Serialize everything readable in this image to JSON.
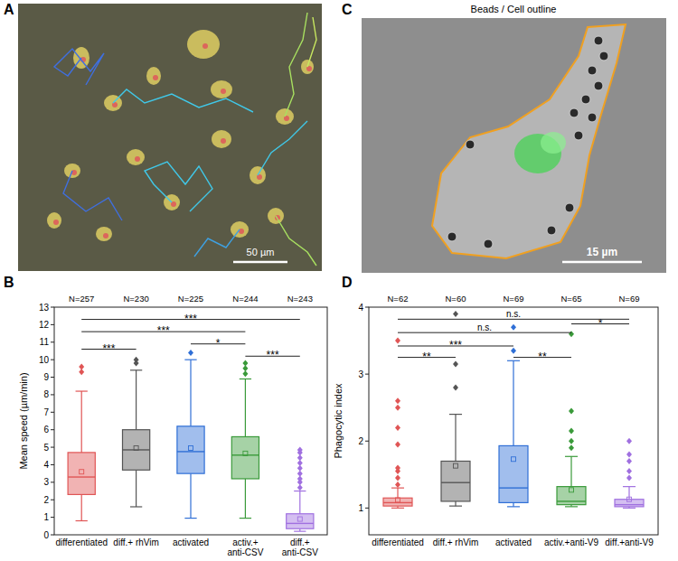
{
  "chart_data": [
    {
      "type": "box",
      "panel_label": "B",
      "y_label": "Mean speed (µm/min)",
      "categories": [
        "differentiated",
        "diff.+ rhVim",
        "activated",
        "activ.+ anti-CSV",
        "diff.+ anti-CSV"
      ],
      "colors": [
        "#e05555",
        "#555555",
        "#2f6fd6",
        "#3a9a3a",
        "#a070e0"
      ],
      "n_labels": [
        "N=257",
        "N=230",
        "N=225",
        "N=244",
        "N=243"
      ],
      "whisker_low": [
        0.8,
        1.6,
        0.95,
        0.95,
        0.2
      ],
      "q1": [
        2.3,
        3.7,
        3.5,
        3.2,
        0.35
      ],
      "median": [
        3.3,
        4.85,
        4.75,
        4.55,
        0.65
      ],
      "q3": [
        4.7,
        6.0,
        6.2,
        5.6,
        1.2
      ],
      "whisker_high": [
        8.2,
        9.4,
        10.0,
        8.9,
        2.5
      ],
      "mean": [
        3.6,
        4.95,
        4.95,
        4.65,
        0.9
      ],
      "outliers": [
        [
          9.3,
          9.6
        ],
        [
          9.8,
          10.0
        ],
        [
          10.4
        ],
        [
          9.2,
          9.5,
          9.8
        ],
        [
          2.7,
          3.0,
          3.2,
          3.5,
          3.8,
          4.1,
          4.4,
          4.7,
          4.85
        ]
      ],
      "ylim": [
        0,
        13
      ],
      "yticks": [
        0,
        1,
        2,
        3,
        4,
        5,
        6,
        7,
        8,
        9,
        10,
        11,
        12,
        13
      ],
      "grid": false,
      "significance": [
        {
          "from": "differentiated",
          "to": "diff.+ anti-CSV",
          "label": "***",
          "y": 12.3
        },
        {
          "from": "differentiated",
          "to": "activ.+ anti-CSV",
          "label": "***",
          "y": 11.6
        },
        {
          "from": "activated",
          "to": "activ.+ anti-CSV",
          "label": "*",
          "y": 10.9
        },
        {
          "from": "differentiated",
          "to": "diff.+ rhVim",
          "label": "***",
          "y": 10.6
        },
        {
          "from": "activ.+ anti-CSV",
          "to": "diff.+ anti-CSV",
          "label": "***",
          "y": 10.2
        }
      ]
    },
    {
      "type": "box",
      "panel_label": "D",
      "y_label": "Phagocytic index",
      "categories": [
        "differentiated",
        "diff.+ rhVim",
        "activated",
        "activ.+anti-V9",
        "diff.+anti-V9"
      ],
      "colors": [
        "#e05555",
        "#555555",
        "#2f6fd6",
        "#3a9a3a",
        "#a070e0"
      ],
      "n_labels": [
        "N=62",
        "N=60",
        "N=69",
        "N=65",
        "N=69"
      ],
      "whisker_low": [
        1.0,
        1.03,
        1.02,
        1.02,
        1.0
      ],
      "q1": [
        1.03,
        1.1,
        1.08,
        1.05,
        1.02
      ],
      "median": [
        1.08,
        1.38,
        1.3,
        1.1,
        1.05
      ],
      "q3": [
        1.15,
        1.7,
        1.93,
        1.32,
        1.13
      ],
      "whisker_high": [
        1.3,
        2.4,
        3.2,
        1.77,
        1.32
      ],
      "mean": [
        1.12,
        1.63,
        1.73,
        1.27,
        1.13
      ],
      "outliers": [
        [
          1.35,
          1.45,
          1.55,
          1.6,
          1.95,
          2.2,
          2.5,
          2.6,
          3.5
        ],
        [
          2.8,
          3.15,
          3.9
        ],
        [
          3.35,
          3.7
        ],
        [
          1.9,
          2.0,
          2.15,
          2.45,
          3.6
        ],
        [
          1.45,
          1.55,
          1.7,
          1.8,
          2.0
        ]
      ],
      "ylim": [
        0.6,
        4
      ],
      "yticks": [
        1,
        2,
        3,
        4
      ],
      "grid": false,
      "significance": [
        {
          "from": "differentiated",
          "to": "diff.+anti-V9",
          "label": "n.s.",
          "y": 3.82
        },
        {
          "from": "differentiated",
          "to": "activ.+anti-V9",
          "label": "n.s.",
          "y": 3.62
        },
        {
          "from": "activ.+anti-V9",
          "to": "diff.+anti-V9",
          "label": "*",
          "y": 3.75
        },
        {
          "from": "differentiated",
          "to": "activated",
          "label": "***",
          "y": 3.42
        },
        {
          "from": "differentiated",
          "to": "diff.+ rhVim",
          "label": "**",
          "y": 3.25
        },
        {
          "from": "activated",
          "to": "activ.+anti-V9",
          "label": "**",
          "y": 3.25
        }
      ]
    }
  ],
  "images": [
    {
      "panel_label": "A",
      "scale_bar": "50 µm"
    },
    {
      "panel_label": "C",
      "title": "Beads / Cell outline",
      "scale_bar": "15 µm"
    }
  ]
}
